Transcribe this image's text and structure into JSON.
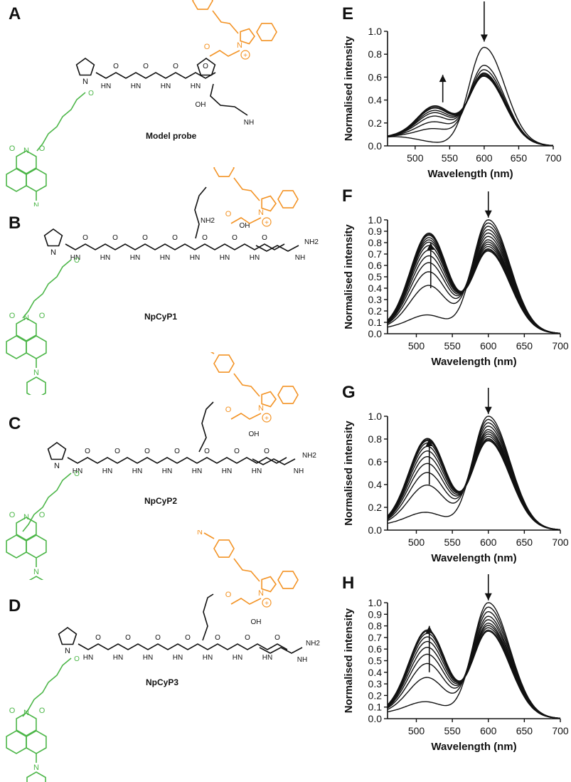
{
  "panels": {
    "A": {
      "letter": "A",
      "label": "Model probe"
    },
    "B": {
      "letter": "B",
      "label": "NpCyP1"
    },
    "C": {
      "letter": "C",
      "label": "NpCyP2"
    },
    "D": {
      "letter": "D",
      "label": "NpCyP3"
    }
  },
  "atom_labels": {
    "N": "N",
    "O": "O",
    "NH": "NH",
    "HN": "HN",
    "NH2": "NH2",
    "OH": "OH",
    "OH2": "O",
    "NH2amide": "NH2",
    "plus": "+"
  },
  "colors": {
    "green": "#4cb648",
    "orange": "#f39325",
    "black": "#111111"
  },
  "chart_data": [
    {
      "panel": "E",
      "type": "line",
      "xlabel": "Wavelength (nm)",
      "ylabel": "Normalised intensity",
      "xlim": [
        460,
        700
      ],
      "ylim": [
        0,
        1.0
      ],
      "xticks": [
        500,
        550,
        600,
        650,
        700
      ],
      "yticks": [
        0.0,
        0.2,
        0.4,
        0.6,
        0.8,
        1.0
      ],
      "arrows": [
        {
          "x": 540,
          "dir": "up"
        },
        {
          "x": 600,
          "dir": "down"
        }
      ],
      "peaks": {
        "green_nm": 530,
        "red_nm": 600
      },
      "series": [
        {
          "g": 0.0,
          "r": 0.86
        },
        {
          "g": 0.12,
          "r": 0.7
        },
        {
          "g": 0.18,
          "r": 0.66
        },
        {
          "g": 0.23,
          "r": 0.63
        },
        {
          "g": 0.26,
          "r": 0.62
        },
        {
          "g": 0.28,
          "r": 0.61
        },
        {
          "g": 0.3,
          "r": 0.6
        },
        {
          "g": 0.31,
          "r": 0.6
        },
        {
          "g": 0.32,
          "r": 0.6
        }
      ]
    },
    {
      "panel": "F",
      "type": "line",
      "xlabel": "Wavelength (nm)",
      "ylabel": "Normalised intensity",
      "xlim": [
        460,
        700
      ],
      "ylim": [
        0,
        1.0
      ],
      "xticks": [
        500,
        550,
        600,
        650,
        700
      ],
      "yticks": [
        0.0,
        0.1,
        0.2,
        0.3,
        0.4,
        0.5,
        0.6,
        0.7,
        0.8,
        0.9,
        1.0
      ],
      "arrows": [
        {
          "x": 520,
          "dir": "up"
        },
        {
          "x": 600,
          "dir": "down"
        }
      ],
      "peaks": {
        "green_nm": 518,
        "red_nm": 600
      },
      "series": [
        {
          "g": 0.14,
          "r": 1.0
        },
        {
          "g": 0.4,
          "r": 0.97
        },
        {
          "g": 0.52,
          "r": 0.94
        },
        {
          "g": 0.6,
          "r": 0.91
        },
        {
          "g": 0.66,
          "r": 0.88
        },
        {
          "g": 0.71,
          "r": 0.85
        },
        {
          "g": 0.75,
          "r": 0.82
        },
        {
          "g": 0.78,
          "r": 0.8
        },
        {
          "g": 0.8,
          "r": 0.78
        },
        {
          "g": 0.82,
          "r": 0.76
        },
        {
          "g": 0.84,
          "r": 0.74
        },
        {
          "g": 0.85,
          "r": 0.73
        },
        {
          "g": 0.86,
          "r": 0.72
        }
      ]
    },
    {
      "panel": "G",
      "type": "line",
      "xlabel": "Wavelength (nm)",
      "ylabel": "Normalised intensity",
      "xlim": [
        460,
        700
      ],
      "ylim": [
        0,
        1.0
      ],
      "xticks": [
        500,
        550,
        600,
        650,
        700
      ],
      "yticks": [
        0.0,
        0.2,
        0.4,
        0.6,
        0.8,
        1.0
      ],
      "arrows": [
        {
          "x": 518,
          "dir": "up"
        },
        {
          "x": 600,
          "dir": "down"
        }
      ],
      "peaks": {
        "green_nm": 516,
        "red_nm": 600
      },
      "series": [
        {
          "g": 0.13,
          "r": 1.0
        },
        {
          "g": 0.37,
          "r": 0.97
        },
        {
          "g": 0.48,
          "r": 0.94
        },
        {
          "g": 0.56,
          "r": 0.91
        },
        {
          "g": 0.62,
          "r": 0.88
        },
        {
          "g": 0.67,
          "r": 0.86
        },
        {
          "g": 0.71,
          "r": 0.84
        },
        {
          "g": 0.74,
          "r": 0.82
        },
        {
          "g": 0.76,
          "r": 0.8
        },
        {
          "g": 0.77,
          "r": 0.79
        },
        {
          "g": 0.78,
          "r": 0.78
        }
      ]
    },
    {
      "panel": "H",
      "type": "line",
      "xlabel": "Wavelength (nm)",
      "ylabel": "Normalised intensity",
      "xlim": [
        460,
        700
      ],
      "ylim": [
        0,
        1.0
      ],
      "xticks": [
        500,
        550,
        600,
        650,
        700
      ],
      "yticks": [
        0.0,
        0.1,
        0.2,
        0.3,
        0.4,
        0.5,
        0.6,
        0.7,
        0.8,
        0.9,
        1.0
      ],
      "arrows": [
        {
          "x": 518,
          "dir": "up"
        },
        {
          "x": 600,
          "dir": "down"
        }
      ],
      "peaks": {
        "green_nm": 516,
        "red_nm": 600
      },
      "series": [
        {
          "g": 0.12,
          "r": 1.0
        },
        {
          "g": 0.33,
          "r": 0.96
        },
        {
          "g": 0.45,
          "r": 0.92
        },
        {
          "g": 0.53,
          "r": 0.88
        },
        {
          "g": 0.59,
          "r": 0.85
        },
        {
          "g": 0.64,
          "r": 0.82
        },
        {
          "g": 0.68,
          "r": 0.8
        },
        {
          "g": 0.71,
          "r": 0.78
        },
        {
          "g": 0.73,
          "r": 0.76
        },
        {
          "g": 0.74,
          "r": 0.75
        }
      ]
    }
  ]
}
